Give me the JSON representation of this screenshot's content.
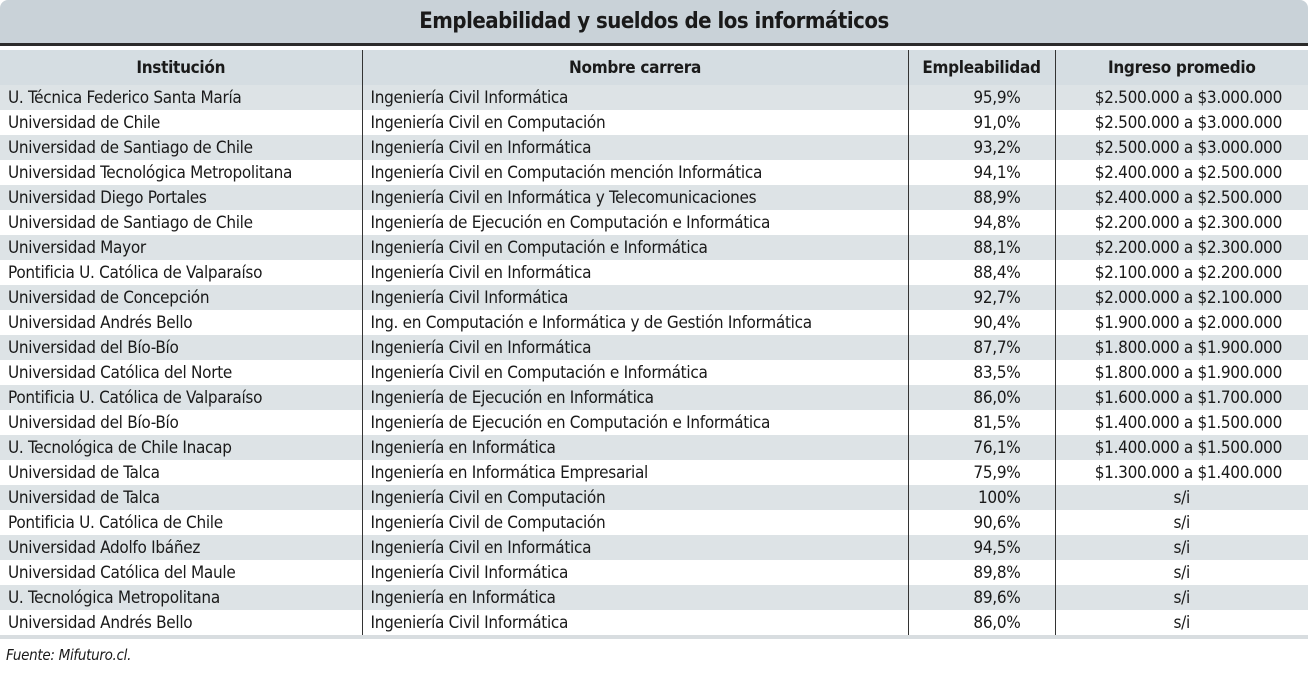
{
  "header": {
    "title": "Empleabilidad y sueldos de los informáticos"
  },
  "table": {
    "columns": [
      "Institución",
      "Nombre carrera",
      "Empleabilidad",
      "Ingreso promedio"
    ],
    "rows": [
      [
        "U. Técnica Federico Santa María",
        "Ingeniería Civil Informática",
        "95,9%",
        "$2.500.000 a $3.000.000"
      ],
      [
        "Universidad de Chile",
        "Ingeniería Civil en Computación",
        "91,0%",
        "$2.500.000 a $3.000.000"
      ],
      [
        "Universidad de Santiago de Chile",
        "Ingeniería Civil en Informática",
        "93,2%",
        "$2.500.000 a $3.000.000"
      ],
      [
        "Universidad Tecnológica Metropolitana",
        "Ingeniería Civil en Computación mención Informática",
        "94,1%",
        "$2.400.000 a $2.500.000"
      ],
      [
        "Universidad Diego Portales",
        "Ingeniería Civil en Informática y Telecomunicaciones",
        "88,9%",
        "$2.400.000 a $2.500.000"
      ],
      [
        "Universidad de Santiago de Chile",
        "Ingeniería de Ejecución en Computación e Informática",
        "94,8%",
        "$2.200.000 a $2.300.000"
      ],
      [
        "Universidad Mayor",
        "Ingeniería Civil en Computación e Informática",
        "88,1%",
        "$2.200.000 a $2.300.000"
      ],
      [
        "Pontificia U. Católica de Valparaíso",
        "Ingeniería Civil en Informática",
        "88,4%",
        "$2.100.000 a $2.200.000"
      ],
      [
        "Universidad de Concepción",
        "Ingeniería Civil Informática",
        "92,7%",
        "$2.000.000 a $2.100.000"
      ],
      [
        "Universidad Andrés Bello",
        "Ing. en Computación e Informática y de Gestión Informática",
        "90,4%",
        "$1.900.000 a $2.000.000"
      ],
      [
        "Universidad del Bío-Bío",
        "Ingeniería Civil en Informática",
        "87,7%",
        "$1.800.000 a $1.900.000"
      ],
      [
        "Universidad Católica del Norte",
        "Ingeniería Civil en Computación e Informática",
        "83,5%",
        "$1.800.000 a $1.900.000"
      ],
      [
        "Pontificia U. Católica de Valparaíso",
        "Ingeniería de Ejecución en Informática",
        "86,0%",
        "$1.600.000 a $1.700.000"
      ],
      [
        "Universidad del Bío-Bío",
        "Ingeniería de Ejecución en Computación e Informática",
        "81,5%",
        "$1.400.000 a $1.500.000"
      ],
      [
        "U. Tecnológica de Chile Inacap",
        "Ingeniería en Informática",
        "76,1%",
        "$1.400.000 a $1.500.000"
      ],
      [
        "Universidad de Talca",
        "Ingeniería en Informática Empresarial",
        "75,9%",
        "$1.300.000 a $1.400.000"
      ],
      [
        "Universidad de Talca",
        "Ingeniería Civil en Computación",
        "100%",
        "s/i"
      ],
      [
        "Pontificia U. Católica de Chile",
        "Ingeniería Civil de Computación",
        "90,6%",
        "s/i"
      ],
      [
        "Universidad Adolfo Ibáñez",
        "Ingeniería Civil en Informática",
        "94,5%",
        "s/i"
      ],
      [
        "Universidad Católica del Maule",
        "Ingeniería Civil Informática",
        "89,8%",
        "s/i"
      ],
      [
        "U. Tecnológica Metropolitana",
        "Ingeniería en Informática",
        "89,6%",
        "s/i"
      ],
      [
        "Universidad Andrés Bello",
        "Ingeniería Civil Informática",
        "86,0%",
        "s/i"
      ]
    ]
  },
  "footer": {
    "source": "Fuente: Mifuturo.cl."
  }
}
